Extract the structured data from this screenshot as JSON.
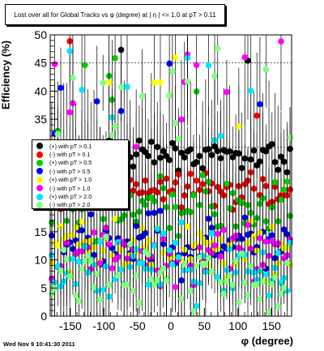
{
  "page": {
    "title": "Lost over all for Global Tracks vs φ (degree) at | η | <= 1.0 at pT > 0.11",
    "timestamp": "Wed Nov  9 10:41:30 2011"
  },
  "chart_data": {
    "type": "scatter",
    "title": "Lost over all for Global Tracks vs φ (degree) at | η | <= 1.0 at pT > 0.11",
    "xlabel": "φ (degree)",
    "ylabel": "Efficiency (%)",
    "xlim": [
      -180,
      180
    ],
    "ylim": [
      0,
      50
    ],
    "x_ticks": [
      -150,
      -100,
      -50,
      0,
      50,
      100,
      150
    ],
    "y_ticks": [
      0,
      5,
      10,
      15,
      20,
      25,
      30,
      35,
      40,
      45,
      50
    ],
    "grid": "dashed horizontal lines at 30, 45, 50",
    "error_bars": true,
    "n_points_per_series": 80,
    "legend_position": "left",
    "series": [
      {
        "name": "(+) with pT > 0.1",
        "color": "#000000",
        "mean": 28.5,
        "spread": 1.6,
        "outlier_rate": 0.02
      },
      {
        "name": "(-) with pT > 0.1",
        "color": "#ff0000",
        "mean": 22.5,
        "spread": 2.0,
        "outlier_rate": 0.03
      },
      {
        "name": "(+) with pT > 0.5",
        "color": "#00cc00",
        "mean": 19.5,
        "spread": 3.5,
        "outlier_rate": 0.05
      },
      {
        "name": "(-) with pT > 0.5",
        "color": "#0000ff",
        "mean": 12.5,
        "spread": 3.5,
        "outlier_rate": 0.06
      },
      {
        "name": "(+) with pT > 1.0",
        "color": "#ffff00",
        "mean": 11.5,
        "spread": 3.5,
        "outlier_rate": 0.06
      },
      {
        "name": "(-) with pT > 1.0",
        "color": "#ff00ff",
        "mean": 10.5,
        "spread": 4.0,
        "outlier_rate": 0.12
      },
      {
        "name": "(+) with pT > 2.0",
        "color": "#00e5ff",
        "mean": 9.0,
        "spread": 4.0,
        "outlier_rate": 0.12
      },
      {
        "name": "(-) with pT > 2.0",
        "color": "#80ff80",
        "mean": 7.0,
        "spread": 4.0,
        "outlier_rate": 0.15
      }
    ]
  }
}
